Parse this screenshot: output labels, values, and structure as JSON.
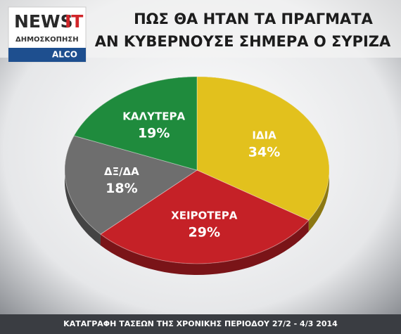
{
  "logo": {
    "brand": "NEWS",
    "brand_accent": "IT",
    "subtitle": "ΔΗΜΟΣΚΟΠΗΣΗ",
    "partner": "ALCO"
  },
  "chart_data": {
    "type": "pie",
    "title": [
      "ΠΩΣ ΘΑ ΗΤΑΝ ΤΑ ΠΡΑΓΜΑΤΑ",
      "ΑΝ ΚΥΒΕΡΝΟΥΣΕ ΣΗΜΕΡΑ Ο ΣΥΡΙΖΑ"
    ],
    "categories": [
      "ΙΔΙΑ",
      "ΧΕΙΡΟΤΕΡΑ",
      "ΔΞ/ΔΑ",
      "ΚΑΛΥΤΕΡΑ"
    ],
    "values": [
      34,
      29,
      18,
      19
    ],
    "value_labels": [
      "34%",
      "29%",
      "18%",
      "19%"
    ],
    "colors": [
      "#e2c11d",
      "#c52127",
      "#6e6e6e",
      "#1f8b3d"
    ],
    "footnote": "ΚΑΤΑΓΡΑΦΗ ΤΑΣΕΩΝ ΤΗΣ ΧΡΟΝΙΚΗΣ ΠΕΡΙΟΔΟΥ 27/2  -  4/3 2014"
  }
}
